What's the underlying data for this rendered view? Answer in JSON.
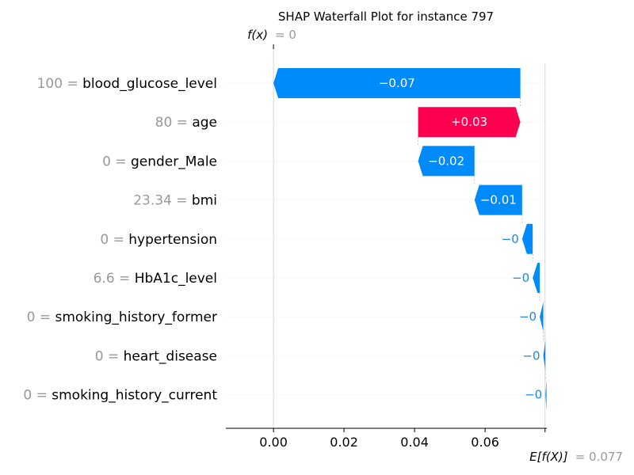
{
  "chart_data": {
    "type": "bar",
    "subtype": "shap-waterfall",
    "title": "SHAP Waterfall Plot for instance 797",
    "base_value": 0.077,
    "output_value": 0,
    "fx_label": "f(x)",
    "fx_value_text": "= 0",
    "ex_label": "E[f(X)]",
    "ex_value_text": "= 0.077",
    "xlim": [
      -0.0135,
      0.0775
    ],
    "xticks": [
      0.0,
      0.02,
      0.04,
      0.06
    ],
    "xtick_labels": [
      "0.00",
      "0.02",
      "0.04",
      "0.06"
    ],
    "colors": {
      "negative": "#008bfb",
      "positive": "#ff0051",
      "grid": "#dddddd"
    },
    "features": [
      {
        "value_text": "100",
        "name": "blood_glucose_level",
        "contribution": -0.07,
        "label": "−0.07",
        "start": 0.07,
        "end": 0.0
      },
      {
        "value_text": "80",
        "name": "age",
        "contribution": 0.03,
        "label": "+0.03",
        "start": 0.041,
        "end": 0.07
      },
      {
        "value_text": "0",
        "name": "gender_Male",
        "contribution": -0.02,
        "label": "−0.02",
        "start": 0.057,
        "end": 0.041
      },
      {
        "value_text": "23.34",
        "name": "bmi",
        "contribution": -0.01,
        "label": "−0.01",
        "start": 0.0705,
        "end": 0.057
      },
      {
        "value_text": "0",
        "name": "hypertension",
        "contribution": -0.003,
        "label": "−0",
        "start": 0.0735,
        "end": 0.0705
      },
      {
        "value_text": "6.6",
        "name": "HbA1c_level",
        "contribution": -0.002,
        "label": "−0",
        "start": 0.0755,
        "end": 0.0735
      },
      {
        "value_text": "0",
        "name": "smoking_history_former",
        "contribution": -0.0015,
        "label": "−0",
        "start": 0.0765,
        "end": 0.0755
      },
      {
        "value_text": "0",
        "name": "heart_disease",
        "contribution": -0.0009,
        "label": "−0",
        "start": 0.0771,
        "end": 0.0765
      },
      {
        "value_text": "0",
        "name": "smoking_history_current",
        "contribution": -0.0003,
        "label": "−0",
        "start": 0.0774,
        "end": 0.0771
      }
    ]
  }
}
